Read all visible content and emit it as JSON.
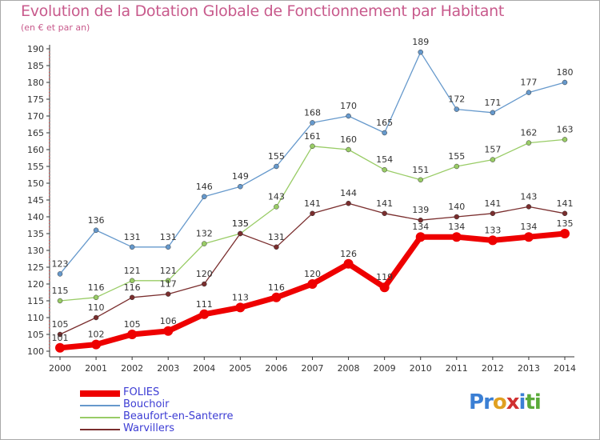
{
  "title": "Evolution de la Dotation Globale de Fonctionnement par Habitant",
  "subtitle": "(en € et par an)",
  "chart_data": {
    "type": "line",
    "x": [
      2000,
      2001,
      2002,
      2003,
      2004,
      2005,
      2006,
      2007,
      2008,
      2009,
      2010,
      2011,
      2012,
      2013,
      2014
    ],
    "ylim": [
      100,
      190
    ],
    "yticks": [
      100,
      105,
      110,
      115,
      120,
      125,
      130,
      135,
      140,
      145,
      150,
      155,
      160,
      165,
      170,
      175,
      180,
      185,
      190
    ],
    "grid": false,
    "legend_position": "bottom-left",
    "series": [
      {
        "name": "FOLIES",
        "color": "#ee0000",
        "values": [
          101,
          102,
          105,
          106,
          111,
          113,
          116,
          120,
          126,
          119,
          134,
          134,
          133,
          134,
          135
        ]
      },
      {
        "name": "Bouchoir",
        "color": "#6699cc",
        "values": [
          123,
          136,
          131,
          131,
          146,
          149,
          155,
          168,
          170,
          165,
          189,
          172,
          171,
          177,
          180
        ]
      },
      {
        "name": "Beaufort-en-Santerre",
        "color": "#99cc66",
        "values": [
          115,
          116,
          121,
          121,
          132,
          135,
          143,
          161,
          160,
          154,
          151,
          155,
          157,
          162,
          163
        ]
      },
      {
        "name": "Warvillers",
        "color": "#7a2e2e",
        "values": [
          105,
          110,
          116,
          117,
          120,
          135,
          131,
          141,
          144,
          141,
          139,
          140,
          141,
          143,
          141
        ]
      }
    ]
  },
  "logo": {
    "text": "Proxiti",
    "letters": [
      "P",
      "r",
      "o",
      "x",
      "i",
      "t",
      "i"
    ],
    "colors": [
      "#3b7fd4",
      "#3b7fd4",
      "#e0a020",
      "#d03030",
      "#3b7fd4",
      "#5aaa3a",
      "#5aaa3a"
    ]
  }
}
